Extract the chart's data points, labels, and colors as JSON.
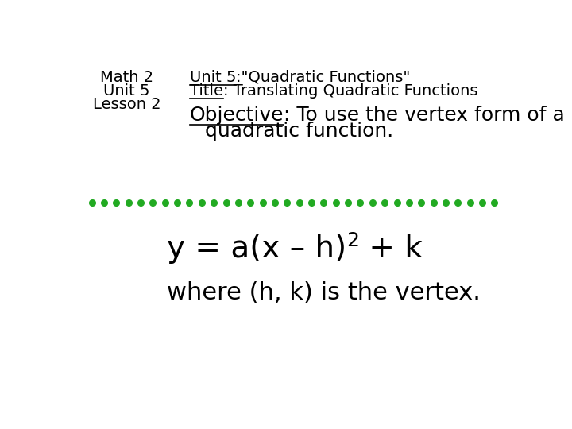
{
  "bg_color": "#ffffff",
  "text_color": "#000000",
  "green_color": "#22aa22",
  "top_left_lines": [
    "Math 2",
    "Unit 5",
    "Lesson 2"
  ],
  "top_right_line1_underline": "Unit 5",
  "top_right_line1_rest": ":\"Quadratic Functions\"",
  "top_right_line2_underline": "Title",
  "top_right_line2_rest": ": Translating Quadratic Functions",
  "objective_underline": "Objective",
  "objective_rest": ": To use the vertex form of a",
  "objective_cont": "quadratic function.",
  "formula_base": "y = a(x – h)",
  "formula_sup": "2",
  "formula_end": " + k",
  "vertex_text": "where (h, k) is the vertex.",
  "font_size_top": 14,
  "font_size_main": 18,
  "font_size_formula": 28,
  "font_size_vertex": 22
}
